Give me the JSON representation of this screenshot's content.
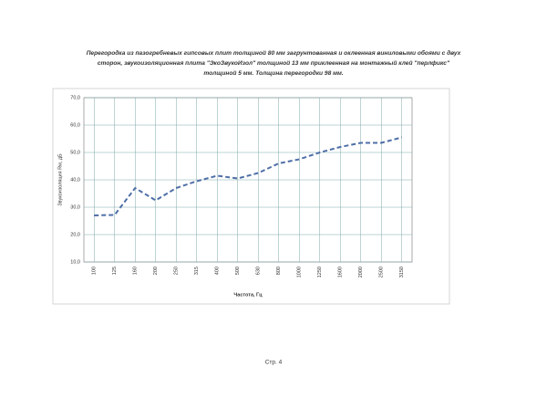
{
  "chart_data": {
    "type": "line",
    "title": [
      "Перегородка из пазогребневых гипсовых плит толщиной 80 мм загрунтованная  и оклеенная виниловыми обоями с двух",
      "сторон,  звукоизоляционная плита \"ЭкоЗвукоИзол\" толщиной 13 мм приклеенная на монтажный клей \"перлфикс\"",
      "толщиной 5 мм. Толщина перегородки 98 мм."
    ],
    "y_label": "Звукоизоляция Rw, дБ",
    "x_label": "Частота, Гц",
    "categories": [
      "100",
      "125",
      "160",
      "200",
      "250",
      "315",
      "400",
      "500",
      "630",
      "800",
      "1000",
      "1250",
      "1600",
      "2000",
      "2500",
      "3150"
    ],
    "series": [
      {
        "name": "Rw",
        "color": "#4f6fa8",
        "values": [
          27.0,
          27.2,
          37.0,
          32.5,
          37.0,
          39.5,
          41.5,
          40.5,
          42.5,
          46.0,
          47.5,
          50.0,
          52.0,
          53.5,
          53.5,
          55.5
        ]
      }
    ],
    "ylim": [
      10,
      70
    ],
    "yticks": [
      {
        "value": 10,
        "label": "10,0"
      },
      {
        "value": 20,
        "label": "20,0"
      },
      {
        "value": 30,
        "label": "30,0"
      },
      {
        "value": 40,
        "label": "40,0"
      },
      {
        "value": 50,
        "label": "50,0"
      },
      {
        "value": 60,
        "label": "60,0"
      },
      {
        "value": 70,
        "label": "70,0"
      }
    ],
    "grid": true
  },
  "footer": "Стр. 4"
}
